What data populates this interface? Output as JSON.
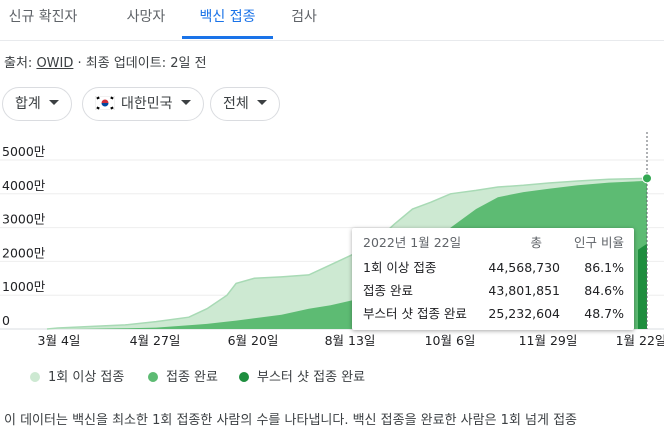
{
  "tabs": [
    {
      "label": "신규 확진자"
    },
    {
      "label": "사망자"
    },
    {
      "label": "백신 접종",
      "active": true
    },
    {
      "label": "검사"
    }
  ],
  "source": {
    "prefix": "출처:",
    "name": "OWID",
    "suffix": "· 최종 업데이트: 2일 전"
  },
  "filters": {
    "metric": "합계",
    "country": "대한민국",
    "range": "전체"
  },
  "colors": {
    "tab_active": "#1a73e8",
    "series_1": "#cde9d2",
    "series_2": "#5dbb73",
    "series_3": "#1e8e3e"
  },
  "chart_data": {
    "type": "area",
    "y_unit": "만",
    "yticks": [
      "0",
      "1000만",
      "2000만",
      "3000만",
      "4000만",
      "5000만"
    ],
    "ylim": [
      0,
      50000000
    ],
    "x_tick_labels": [
      "3월 4일",
      "4월 27일",
      "6월 20일",
      "8월 13일",
      "10월 6일",
      "11월 29일",
      "1월 22일"
    ],
    "x": [
      "2021-02-26",
      "2021-03-04",
      "2021-03-20",
      "2021-04-10",
      "2021-04-27",
      "2021-05-15",
      "2021-05-25",
      "2021-06-05",
      "2021-06-10",
      "2021-06-20",
      "2021-07-05",
      "2021-07-20",
      "2021-08-01",
      "2021-08-13",
      "2021-08-25",
      "2021-09-05",
      "2021-09-15",
      "2021-09-25",
      "2021-10-06",
      "2021-10-20",
      "2021-11-01",
      "2021-11-15",
      "2021-11-29",
      "2021-12-15",
      "2022-01-01",
      "2022-01-22"
    ],
    "series": [
      {
        "name": "1회 이상 접종",
        "values": [
          0,
          300000,
          700000,
          1200000,
          2200000,
          3500000,
          6000000,
          10000000,
          13500000,
          15000000,
          15400000,
          16000000,
          19000000,
          22000000,
          25500000,
          31000000,
          35500000,
          37500000,
          40000000,
          41000000,
          42000000,
          42500000,
          43200000,
          43800000,
          44300000,
          44568730
        ]
      },
      {
        "name": "접종 완료",
        "values": [
          0,
          0,
          100000,
          200000,
          400000,
          1100000,
          1500000,
          2200000,
          2500000,
          3200000,
          4200000,
          6000000,
          7000000,
          8500000,
          10000000,
          15000000,
          20000000,
          25000000,
          30000000,
          35500000,
          39000000,
          40500000,
          41500000,
          42500000,
          43300000,
          43801851
        ]
      },
      {
        "name": "부스터 샷 접종 완료",
        "values": [
          0,
          0,
          0,
          0,
          0,
          0,
          0,
          0,
          0,
          0,
          0,
          0,
          0,
          0,
          0,
          0,
          0,
          0,
          0,
          0,
          0,
          0,
          0,
          0,
          0,
          25232604
        ]
      }
    ]
  },
  "tooltip": {
    "date": "2022년 1월 22일",
    "col_total": "총",
    "col_ratio": "인구 비율",
    "rows": [
      {
        "label": "1회 이상 접종",
        "total": "44,568,730",
        "ratio": "86.1%"
      },
      {
        "label": "접종 완료",
        "total": "43,801,851",
        "ratio": "84.6%"
      },
      {
        "label": "부스터 샷 접종 완료",
        "total": "25,232,604",
        "ratio": "48.7%"
      }
    ]
  },
  "legend": [
    {
      "label": "1회 이상 접종"
    },
    {
      "label": "접종 완료"
    },
    {
      "label": "부스터 샷 접종 완료"
    }
  ],
  "description": "이 데이터는 백신을 최소한 1회 접종한 사람의 수를 나타냅니다. 백신 접종을 완료한 사람은 1회 넘게 접종"
}
